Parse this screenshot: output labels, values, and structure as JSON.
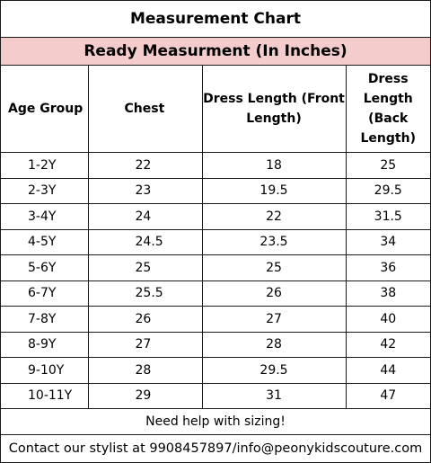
{
  "title": "Measurement Chart",
  "subtitle": "Ready Measurment (In Inches)",
  "headers": {
    "age_group": "Age Group",
    "chest": "Chest",
    "front": "Dress Length   (Front Length)",
    "back": "Dress Length (Back Length)"
  },
  "rows": [
    {
      "age": "1-2Y",
      "chest": "22",
      "front": "18",
      "back": "25"
    },
    {
      "age": "2-3Y",
      "chest": "23",
      "front": "19.5",
      "back": "29.5"
    },
    {
      "age": "3-4Y",
      "chest": "24",
      "front": "22",
      "back": "31.5"
    },
    {
      "age": "4-5Y",
      "chest": "24.5",
      "front": "23.5",
      "back": "34"
    },
    {
      "age": "5-6Y",
      "chest": "25",
      "front": "25",
      "back": "36"
    },
    {
      "age": "6-7Y",
      "chest": "25.5",
      "front": "26",
      "back": "38"
    },
    {
      "age": "7-8Y",
      "chest": "26",
      "front": "27",
      "back": "40"
    },
    {
      "age": "8-9Y",
      "chest": "27",
      "front": "28",
      "back": "42"
    },
    {
      "age": "9-10Y",
      "chest": "28",
      "front": "29.5",
      "back": "44"
    },
    {
      "age": "10-11Y",
      "chest": "29",
      "front": "31",
      "back": "47"
    }
  ],
  "help_text": "Need help with sizing!",
  "contact_text": "Contact our stylist at 9908457897/info@peonykidscouture.com",
  "colors": {
    "subtitle_bg": "#f4cccc",
    "border": "#1a1a1a"
  }
}
